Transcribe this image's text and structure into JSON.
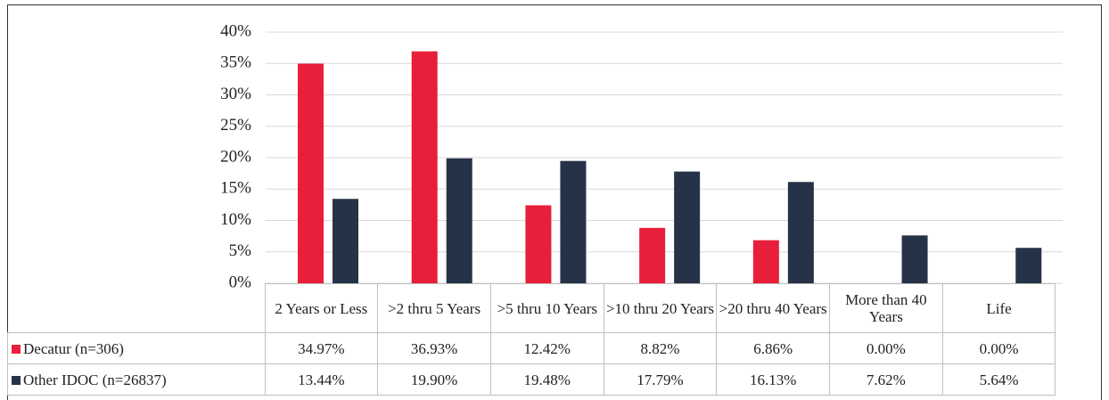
{
  "chart_data": {
    "type": "bar",
    "categories": [
      "2 Years or Less",
      ">2 thru 5 Years",
      ">5 thru 10 Years",
      ">10 thru 20 Years",
      ">20 thru 40 Years",
      "More than 40 Years",
      "Life"
    ],
    "series": [
      {
        "name": "Decatur (n=306)",
        "color": "#e81f3a",
        "values": [
          34.97,
          36.93,
          12.42,
          8.82,
          6.86,
          0.0,
          0.0
        ],
        "value_labels": [
          "34.97%",
          "36.93%",
          "12.42%",
          "8.82%",
          "6.86%",
          "0.00%",
          "0.00%"
        ]
      },
      {
        "name": "Other IDOC (n=26837)",
        "color": "#263248",
        "values": [
          13.44,
          19.9,
          19.48,
          17.79,
          16.13,
          7.62,
          5.64
        ],
        "value_labels": [
          "13.44%",
          "19.90%",
          "19.48%",
          "17.79%",
          "16.13%",
          "7.62%",
          "5.64%"
        ]
      }
    ],
    "ylim": [
      0,
      40
    ],
    "yticks": [
      {
        "value": 0,
        "label": "0%"
      },
      {
        "value": 5,
        "label": "5%"
      },
      {
        "value": 10,
        "label": "10%"
      },
      {
        "value": 15,
        "label": "15%"
      },
      {
        "value": 20,
        "label": "20%"
      },
      {
        "value": 25,
        "label": "25%"
      },
      {
        "value": 30,
        "label": "30%"
      },
      {
        "value": 35,
        "label": "35%"
      },
      {
        "value": 40,
        "label": "40%"
      }
    ],
    "grid": true
  }
}
